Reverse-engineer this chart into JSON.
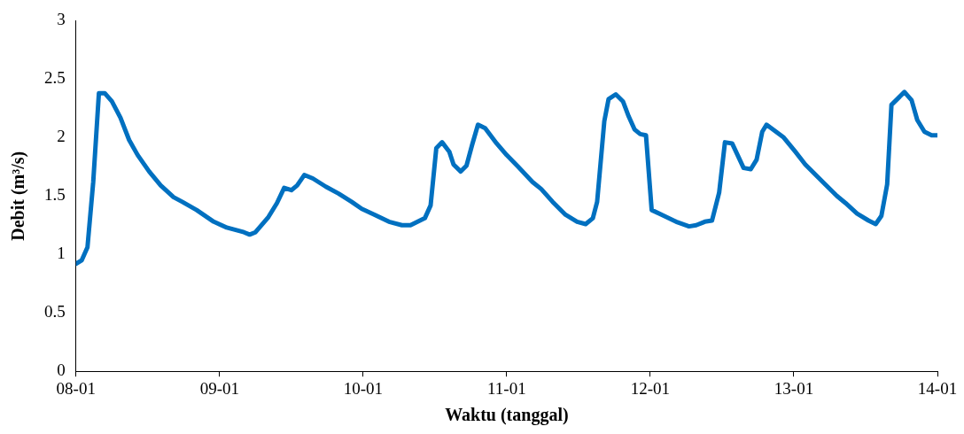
{
  "chart_data": {
    "type": "line",
    "xlabel": "Waktu (tanggal)",
    "ylabel": "Debit (m³/s)",
    "color": "#0070c0",
    "marker": "none",
    "line_style": "solid",
    "grid": false,
    "legend": false,
    "x": [
      "--01-08T00:00",
      "--01-08T00:58",
      "--01-08T01:55",
      "--01-08T02:53",
      "--01-08T03:50",
      "--01-08T04:48",
      "--01-08T06:00",
      "--01-08T07:26",
      "--01-08T08:53",
      "--01-08T10:19",
      "--01-08T12:14",
      "--01-08T14:10",
      "--01-08T16:19",
      "--01-08T17:46",
      "--01-08T20:10",
      "--01-08T23:02",
      "--01-09T01:12",
      "--01-09T04:05",
      "--01-09T05:02",
      "--01-09T06:00",
      "--01-09T08:10",
      "--01-09T09:36",
      "--01-09T10:48",
      "--01-09T12:00",
      "--01-09T12:58",
      "--01-09T14:10",
      "--01-09T15:36",
      "--01-09T17:46",
      "--01-09T19:55",
      "--01-09T22:05",
      "--01-09T23:46",
      "--01-10T01:55",
      "--01-10T04:19",
      "--01-10T06:29",
      "--01-10T07:55",
      "--01-10T09:07",
      "--01-10T10:19",
      "--01-10T11:17",
      "--01-10T12:14",
      "--01-10T13:12",
      "--01-10T14:24",
      "--01-10T15:07",
      "--01-10T16:19",
      "--01-10T17:17",
      "--01-10T18:14",
      "--01-10T19:12",
      "--01-10T20:24",
      "--01-10T22:19",
      "--01-11T00:00",
      "--01-11T01:55",
      "--01-11T04:19",
      "--01-11T05:46",
      "--01-11T07:41",
      "--01-11T09:50",
      "--01-11T11:46",
      "--01-11T13:12",
      "--01-11T14:24",
      "--01-11T15:07",
      "--01-11T16:19",
      "--01-11T17:02",
      "--01-11T18:14",
      "--01-11T19:26",
      "--01-11T20:24",
      "--01-11T21:22",
      "--01-11T22:19",
      "--01-11T23:17",
      "--01-12T00:14",
      "--01-12T01:55",
      "--01-12T04:19",
      "--01-12T06:29",
      "--01-12T07:41",
      "--01-12T09:07",
      "--01-12T10:19",
      "--01-12T11:31",
      "--01-12T12:29",
      "--01-12T13:41",
      "--01-12T15:36",
      "--01-12T16:48",
      "--01-12T17:46",
      "--01-12T18:43",
      "--01-12T19:26",
      "--01-12T22:19",
      "--01-13T00:14",
      "--01-13T01:55",
      "--01-13T02:53",
      "--01-13T05:02",
      "--01-13T07:12",
      "--01-13T08:38",
      "--01-13T10:34",
      "--01-13T12:29",
      "--01-13T13:41",
      "--01-13T14:38",
      "--01-13T15:36",
      "--01-13T16:19",
      "--01-13T18:29",
      "--01-13T19:41",
      "--01-13T20:38",
      "--01-13T21:50",
      "--01-13T23:02",
      "--01-14T00:00"
    ],
    "values": [
      0.92,
      0.95,
      1.06,
      1.62,
      2.38,
      2.38,
      2.31,
      2.17,
      1.98,
      1.85,
      1.71,
      1.59,
      1.49,
      1.45,
      1.38,
      1.28,
      1.23,
      1.19,
      1.17,
      1.19,
      1.32,
      1.44,
      1.57,
      1.55,
      1.59,
      1.68,
      1.65,
      1.58,
      1.52,
      1.45,
      1.39,
      1.34,
      1.28,
      1.25,
      1.25,
      1.28,
      1.31,
      1.42,
      1.91,
      1.96,
      1.88,
      1.77,
      1.71,
      1.76,
      1.94,
      2.11,
      2.08,
      1.95,
      1.85,
      1.75,
      1.62,
      1.56,
      1.45,
      1.34,
      1.28,
      1.26,
      1.31,
      1.45,
      2.14,
      2.33,
      2.37,
      2.31,
      2.18,
      2.07,
      2.03,
      2.02,
      1.38,
      1.34,
      1.28,
      1.24,
      1.25,
      1.28,
      1.29,
      1.53,
      1.96,
      1.95,
      1.74,
      1.73,
      1.81,
      2.05,
      2.11,
      2.0,
      1.88,
      1.77,
      1.72,
      1.61,
      1.5,
      1.44,
      1.35,
      1.29,
      1.26,
      1.33,
      1.6,
      2.28,
      2.39,
      2.32,
      2.15,
      2.05,
      2.02,
      2.02
    ],
    "xlim": [
      "--01-08",
      "--01-14"
    ],
    "xticks": [
      {
        "value": "--01-08",
        "label": "08-01"
      },
      {
        "value": "--01-09",
        "label": "09-01"
      },
      {
        "value": "--01-10",
        "label": "10-01"
      },
      {
        "value": "--01-11",
        "label": "11-01"
      },
      {
        "value": "--01-12",
        "label": "12-01"
      },
      {
        "value": "--01-13",
        "label": "13-01"
      },
      {
        "value": "--01-14",
        "label": "14-01"
      }
    ],
    "ylim": [
      0,
      3
    ],
    "yticks": [
      0,
      0.5,
      1,
      1.5,
      2,
      2.5,
      3
    ]
  }
}
